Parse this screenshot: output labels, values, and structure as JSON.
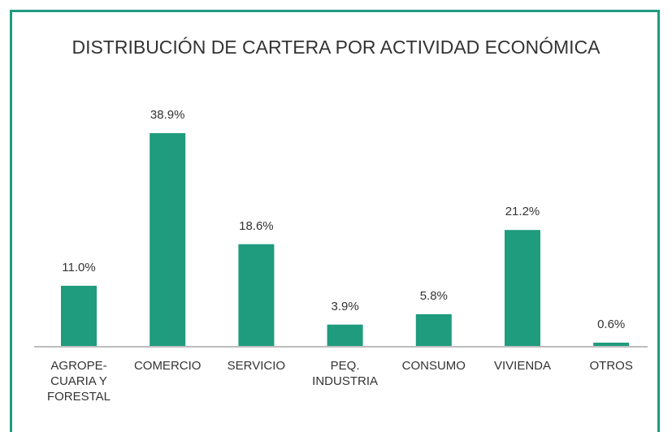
{
  "chart_data": {
    "type": "bar",
    "title": "DISTRIBUCIÓN DE CARTERA POR ACTIVIDAD ECONÓMICA",
    "categories": [
      "AGROPE-\nCUARIA Y\nFORESTAL",
      "COMERCIO",
      "SERVICIO",
      "PEQ.\nINDUSTRIA",
      "CONSUMO",
      "VIVIENDA",
      "OTROS"
    ],
    "values": [
      11.0,
      38.9,
      18.6,
      3.9,
      5.8,
      21.2,
      0.6
    ],
    "value_labels": [
      "11.0%",
      "38.9%",
      "18.6%",
      "3.9%",
      "5.8%",
      "21.2%",
      "0.6%"
    ],
    "color": "#1f9b7e"
  }
}
